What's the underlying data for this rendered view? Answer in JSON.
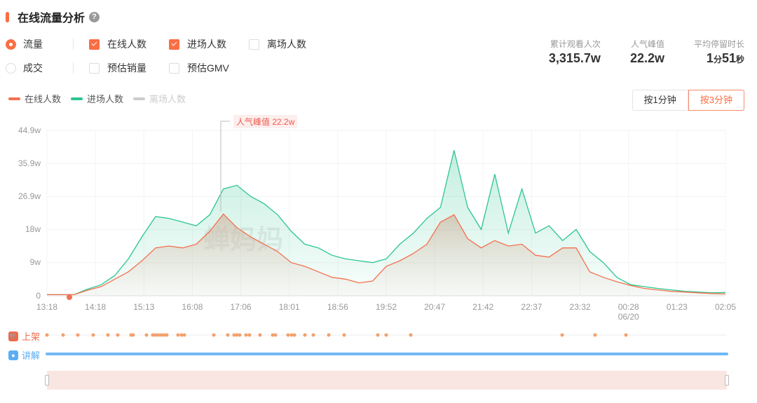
{
  "header": {
    "title": "在线流量分析",
    "help_icon": "?"
  },
  "options": {
    "row1": {
      "radio": {
        "label": "流量",
        "checked": true
      },
      "checkboxes": [
        {
          "label": "在线人数",
          "checked": true
        },
        {
          "label": "进场人数",
          "checked": true
        },
        {
          "label": "离场人数",
          "checked": false
        }
      ]
    },
    "row2": {
      "radio": {
        "label": "成交",
        "checked": false
      },
      "checkboxes": [
        {
          "label": "预估销量",
          "checked": false
        },
        {
          "label": "预估GMV",
          "checked": false
        }
      ]
    }
  },
  "stats": [
    {
      "label": "累计观看人次",
      "value": "3,315.7w"
    },
    {
      "label": "人气峰值",
      "value": "22.2w"
    },
    {
      "label": "平均停留时长",
      "value_parts": [
        "1",
        "分",
        "51",
        "秒"
      ]
    }
  ],
  "granularity": {
    "options": [
      "按1分钟",
      "按3分钟"
    ],
    "active": "按3分钟"
  },
  "legend": [
    {
      "label": "在线人数",
      "color": "#f4704f",
      "active": true
    },
    {
      "label": "进场人数",
      "color": "#2cc68f",
      "active": true
    },
    {
      "label": "离场人数",
      "color": "#cccccc",
      "active": false
    }
  ],
  "peak_annotation": "人气峰值 22.2w",
  "tracks": {
    "listing": "上架",
    "explain": "讲解"
  },
  "watermark": "蝉妈妈",
  "chart_data": {
    "type": "area",
    "title": "在线流量分析",
    "xlabel": "",
    "ylabel": "",
    "ylim": [
      0,
      44.9
    ],
    "y_unit": "w",
    "y_ticks": [
      "0",
      "9w",
      "18w",
      "26.9w",
      "35.9w",
      "44.9w"
    ],
    "x_ticks": [
      "13:18",
      "14:18",
      "15:13",
      "16:08",
      "17:06",
      "18:01",
      "18:56",
      "19:52",
      "20:47",
      "21:42",
      "22:37",
      "23:32",
      "00:28\n06/20",
      "01:23",
      "02:05"
    ],
    "grid": true,
    "legend_position": "top-left",
    "x": [
      "13:18",
      "13:35",
      "13:55",
      "14:18",
      "14:35",
      "14:55",
      "15:05",
      "15:13",
      "15:25",
      "15:40",
      "15:55",
      "16:08",
      "16:20",
      "16:35",
      "16:50",
      "17:06",
      "17:20",
      "17:35",
      "17:50",
      "18:01",
      "18:20",
      "18:40",
      "18:56",
      "19:10",
      "19:25",
      "19:40",
      "19:52",
      "20:10",
      "20:25",
      "20:40",
      "20:47",
      "21:00",
      "21:10",
      "21:20",
      "21:30",
      "21:42",
      "22:00",
      "22:15",
      "22:30",
      "22:37",
      "23:00",
      "23:20",
      "23:32",
      "23:50",
      "00:10",
      "00:28",
      "00:50",
      "01:10",
      "01:23",
      "01:45",
      "02:05"
    ],
    "series": [
      {
        "name": "在线人数",
        "color": "#f4704f",
        "values": [
          0.3,
          0.3,
          0.3,
          1.5,
          2.5,
          4.5,
          6.5,
          9.5,
          13,
          13.5,
          13,
          14,
          17.5,
          22.2,
          18.5,
          16,
          14,
          12,
          9,
          8,
          6.5,
          5,
          4.5,
          3.5,
          4,
          8,
          9.5,
          11.5,
          14,
          20,
          22,
          15.5,
          13,
          15,
          13.5,
          14,
          11,
          10.5,
          13,
          13,
          6.5,
          5,
          3.8,
          2.8,
          2,
          1.6,
          1.2,
          1,
          0.8,
          0.6,
          0.5
        ]
      },
      {
        "name": "进场人数",
        "color": "#2cc68f",
        "values": [
          0.3,
          0.3,
          0.3,
          1.8,
          3,
          5.5,
          10,
          16,
          21.5,
          21,
          20,
          19,
          22,
          29,
          30,
          27,
          25,
          22,
          17.5,
          14,
          13,
          11,
          10,
          9.5,
          9,
          10,
          14,
          17,
          21,
          24,
          39.5,
          24,
          18,
          33,
          17,
          29,
          17,
          19,
          15,
          18,
          12,
          9,
          5,
          3,
          2.5,
          2,
          1.6,
          1.2,
          1,
          0.8,
          0.9
        ]
      },
      {
        "name": "离场人数",
        "color": "#cccccc",
        "values": []
      }
    ],
    "annotations": [
      {
        "text": "人气峰值 22.2w",
        "x": "16:35",
        "y": 22.2
      }
    ]
  }
}
